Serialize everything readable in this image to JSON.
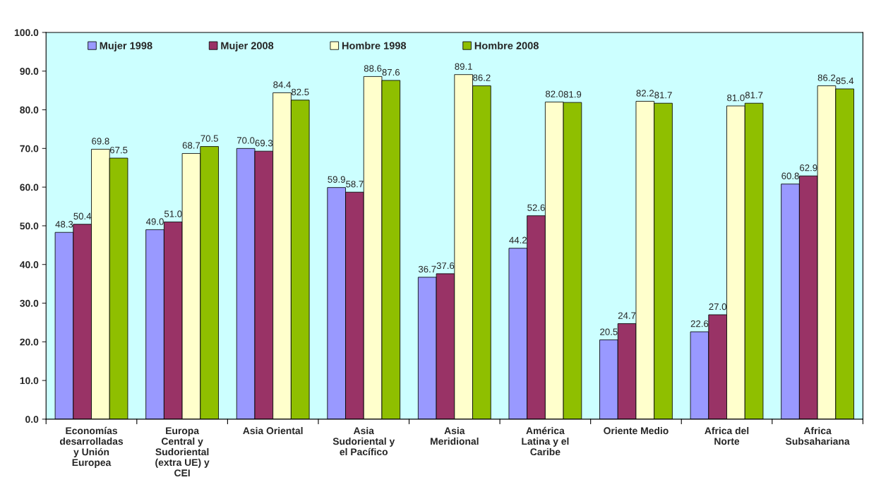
{
  "chart_data": {
    "type": "bar",
    "categories": [
      "Economías\ndesarrolladas\ny Unión\nEuropea",
      "Europa\nCentral y\nSudoriental\n(extra UE) y\nCEI",
      "Asia Oriental",
      "Asia\nSudoriental y\nel Pacífico",
      "Asia\nMeridional",
      "América\nLatina y el\nCaribe",
      "Oriente Medio",
      "Africa del\nNorte",
      "Africa\nSubsahariana"
    ],
    "series": [
      {
        "name": "Mujer 1998",
        "color": "#9999ff",
        "values": [
          48.3,
          49.0,
          70.0,
          59.9,
          36.7,
          44.2,
          20.5,
          22.6,
          60.8
        ],
        "value_labels": [
          "48.3",
          "49.0",
          "70.0",
          "59.9",
          "36.7",
          "44.2",
          "20.5",
          "22.6",
          "60.8"
        ]
      },
      {
        "name": "Mujer 2008",
        "color": "#993366",
        "values": [
          50.4,
          51.0,
          69.3,
          58.7,
          37.6,
          52.6,
          24.7,
          27.0,
          62.9
        ],
        "value_labels": [
          "50.4",
          "51.0",
          "69.3",
          "58.7",
          "37.6",
          "52.6",
          "24.7",
          "27.0",
          "62.9"
        ]
      },
      {
        "name": "Hombre 1998",
        "color": "#ffffcc",
        "values": [
          69.8,
          68.7,
          84.4,
          88.6,
          89.1,
          82.0,
          82.2,
          81.0,
          86.2
        ],
        "value_labels": [
          "69.8",
          "68.7",
          "84.4",
          "88.6",
          "89.1",
          "82.0",
          "82.2",
          "81.0",
          "86.2"
        ]
      },
      {
        "name": "Hombre 2008",
        "color": "#8fbf00",
        "values": [
          67.5,
          70.5,
          82.5,
          87.6,
          86.2,
          81.9,
          81.7,
          81.7,
          85.4
        ],
        "value_labels": [
          "67.5",
          "70.5",
          "82.5",
          "87.6",
          "86.2",
          "81.9",
          "81.7",
          "81.7",
          "85.4"
        ]
      }
    ],
    "ylim": [
      0,
      100
    ],
    "yticks": [
      {
        "value": 0,
        "label": "0.0"
      },
      {
        "value": 10,
        "label": "10.0"
      },
      {
        "value": 20,
        "label": "20.0"
      },
      {
        "value": 30,
        "label": "30.0"
      },
      {
        "value": 40,
        "label": "40.0"
      },
      {
        "value": 50,
        "label": "50.0"
      },
      {
        "value": 60,
        "label": "60.0"
      },
      {
        "value": 70,
        "label": "70.0"
      },
      {
        "value": 80,
        "label": "80.0"
      },
      {
        "value": 90,
        "label": "90.0"
      },
      {
        "value": 100,
        "label": "100.0"
      }
    ],
    "grid": false,
    "legend": "top"
  }
}
